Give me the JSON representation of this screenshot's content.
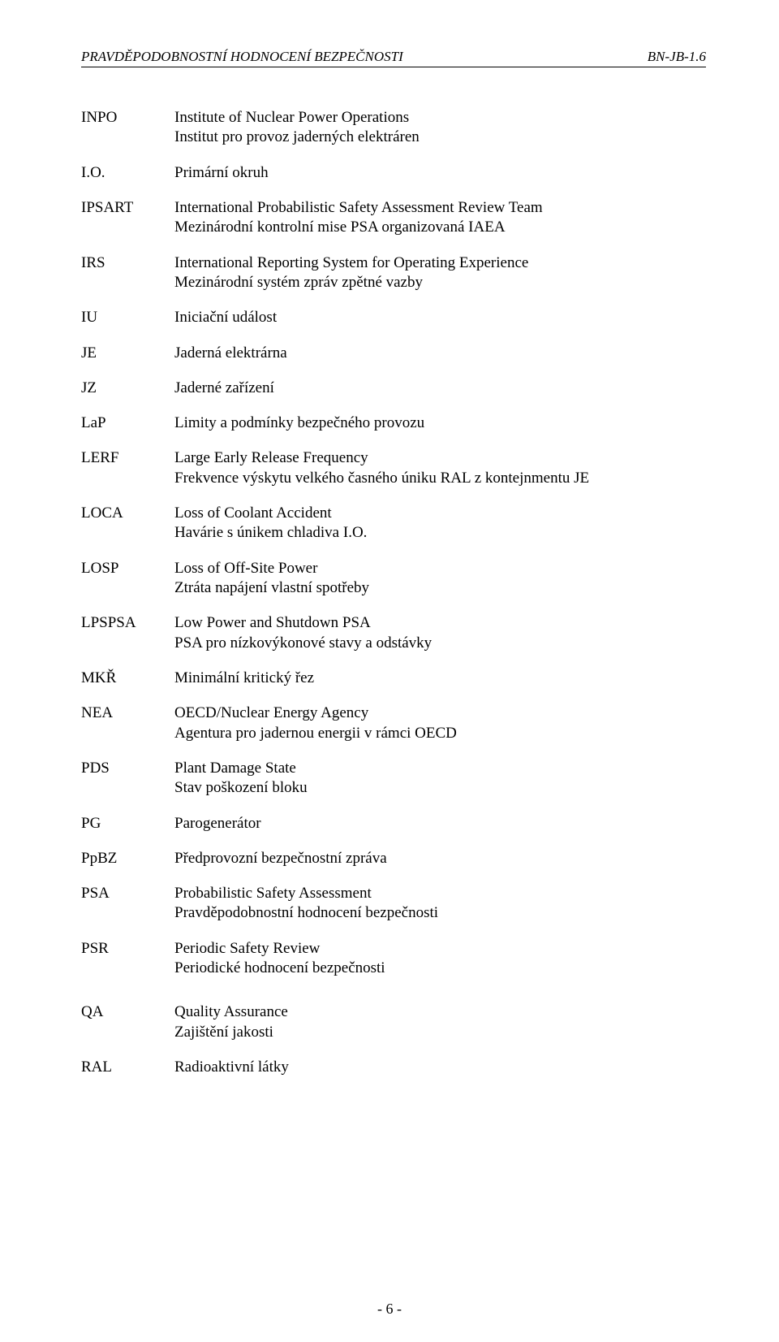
{
  "header": {
    "left": "PRAVDĚPODOBNOSTNÍ HODNOCENÍ BEZPEČNOSTI",
    "right": "BN-JB-1.6"
  },
  "groups": [
    {
      "rows": [
        {
          "abbr": "INPO",
          "lines": [
            "Institute of Nuclear Power Operations",
            "Institut pro provoz jaderných elektráren"
          ]
        },
        {
          "abbr": "I.O.",
          "lines": [
            "Primární okruh"
          ]
        },
        {
          "abbr": "IPSART",
          "lines": [
            "International Probabilistic Safety Assessment Review Team",
            "Mezinárodní kontrolní mise PSA organizovaná IAEA"
          ]
        },
        {
          "abbr": "IRS",
          "lines": [
            "International Reporting System for Operating Experience",
            "Mezinárodní systém zpráv zpětné vazby"
          ]
        },
        {
          "abbr": "IU",
          "lines": [
            "Iniciační událost"
          ]
        },
        {
          "abbr": "JE",
          "lines": [
            "Jaderná elektrárna"
          ]
        },
        {
          "abbr": "JZ",
          "lines": [
            "Jaderné zařízení"
          ]
        },
        {
          "abbr": "LaP",
          "lines": [
            "Limity a podmínky bezpečného provozu"
          ]
        },
        {
          "abbr": "LERF",
          "lines": [
            "Large Early Release Frequency",
            "Frekvence výskytu velkého časného úniku RAL z kontejnmentu JE"
          ]
        },
        {
          "abbr": "LOCA",
          "lines": [
            "Loss of Coolant Accident",
            "Havárie s únikem chladiva I.O."
          ]
        },
        {
          "abbr": "LOSP",
          "lines": [
            "Loss of Off-Site Power",
            "Ztráta napájení vlastní spotřeby"
          ]
        },
        {
          "abbr": "LPSPSA",
          "lines": [
            "Low Power and Shutdown PSA",
            "PSA pro nízkovýkonové stavy a odstávky"
          ]
        },
        {
          "abbr": "MKŘ",
          "lines": [
            "Minimální kritický řez"
          ]
        },
        {
          "abbr": "NEA",
          "lines": [
            "OECD/Nuclear Energy Agency",
            "Agentura pro jadernou energii v rámci OECD"
          ]
        },
        {
          "abbr": "PDS",
          "lines": [
            "Plant Damage State",
            "Stav poškození bloku"
          ]
        },
        {
          "abbr": "PG",
          "lines": [
            "Parogenerátor"
          ]
        },
        {
          "abbr": "PpBZ",
          "lines": [
            "Předprovozní bezpečnostní zpráva"
          ]
        },
        {
          "abbr": "PSA",
          "lines": [
            "Probabilistic Safety Assessment",
            "Pravděpodobnostní hodnocení bezpečnosti"
          ]
        },
        {
          "abbr": "PSR",
          "lines": [
            "Periodic Safety Review",
            "Periodické hodnocení bezpečnosti"
          ]
        }
      ]
    },
    {
      "rows": [
        {
          "abbr": "QA",
          "lines": [
            "Quality Assurance",
            "Zajištění jakosti"
          ]
        },
        {
          "abbr": "RAL",
          "lines": [
            "Radioaktivní látky"
          ]
        }
      ]
    }
  ],
  "footer": "- 6 -"
}
